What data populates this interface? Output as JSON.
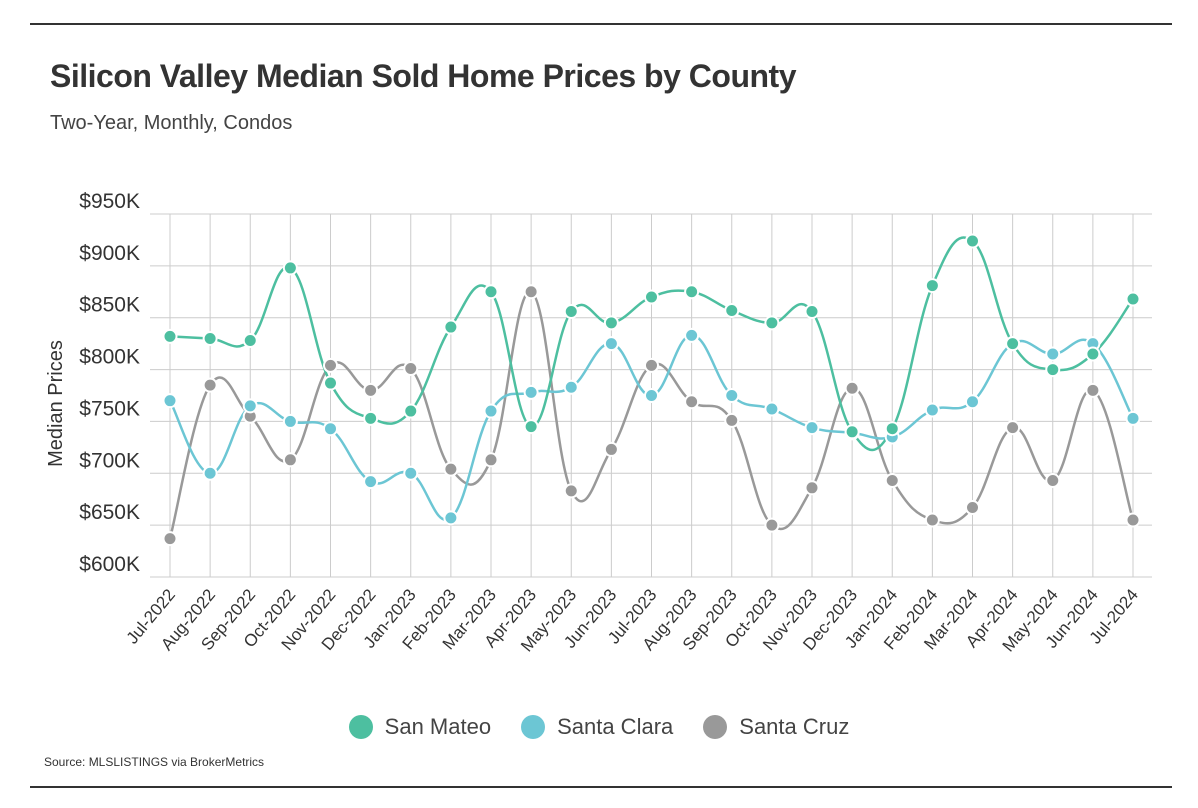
{
  "header": {
    "title": "Silicon Valley Median Sold Home Prices by County",
    "subtitle": "Two-Year, Monthly, Condos"
  },
  "source": "Source:  MLSLISTINGS via BrokerMetrics",
  "chart_data": {
    "type": "line",
    "ylabel": "Median Prices",
    "ylim": [
      600,
      950
    ],
    "yticks": [
      950,
      900,
      850,
      800,
      750,
      700,
      650,
      600
    ],
    "ytick_labels": [
      "$950K",
      "$900K",
      "$850K",
      "$800K",
      "$750K",
      "$700K",
      "$650K",
      "$600K"
    ],
    "grid": true,
    "legend_position": "bottom",
    "categories": [
      "Jul-2022",
      "Aug-2022",
      "Sep-2022",
      "Oct-2022",
      "Nov-2022",
      "Dec-2022",
      "Jan-2023",
      "Feb-2023",
      "Mar-2023",
      "Apr-2023",
      "May-2023",
      "Jun-2023",
      "Jul-2023",
      "Aug-2023",
      "Sep-2023",
      "Oct-2023",
      "Nov-2023",
      "Dec-2023",
      "Jan-2024",
      "Feb-2024",
      "Mar-2024",
      "Apr-2024",
      "May-2024",
      "Jun-2024",
      "Jul-2024"
    ],
    "series": [
      {
        "name": "San Mateo",
        "color": "#4dbfa0",
        "values": [
          832,
          830,
          828,
          898,
          787,
          753,
          760,
          841,
          875,
          745,
          856,
          845,
          870,
          875,
          857,
          845,
          856,
          740,
          743,
          881,
          924,
          825,
          800,
          815,
          868
        ]
      },
      {
        "name": "Santa Clara",
        "color": "#6cc6d4",
        "values": [
          770,
          700,
          765,
          750,
          743,
          692,
          700,
          657,
          760,
          778,
          783,
          825,
          775,
          833,
          775,
          762,
          744,
          739,
          735,
          761,
          769,
          825,
          815,
          825,
          753
        ]
      },
      {
        "name": "Santa Cruz",
        "color": "#999999",
        "values": [
          637,
          785,
          755,
          713,
          804,
          780,
          801,
          704,
          713,
          875,
          683,
          723,
          804,
          769,
          751,
          650,
          686,
          782,
          693,
          655,
          667,
          744,
          693,
          780,
          655
        ]
      }
    ]
  }
}
